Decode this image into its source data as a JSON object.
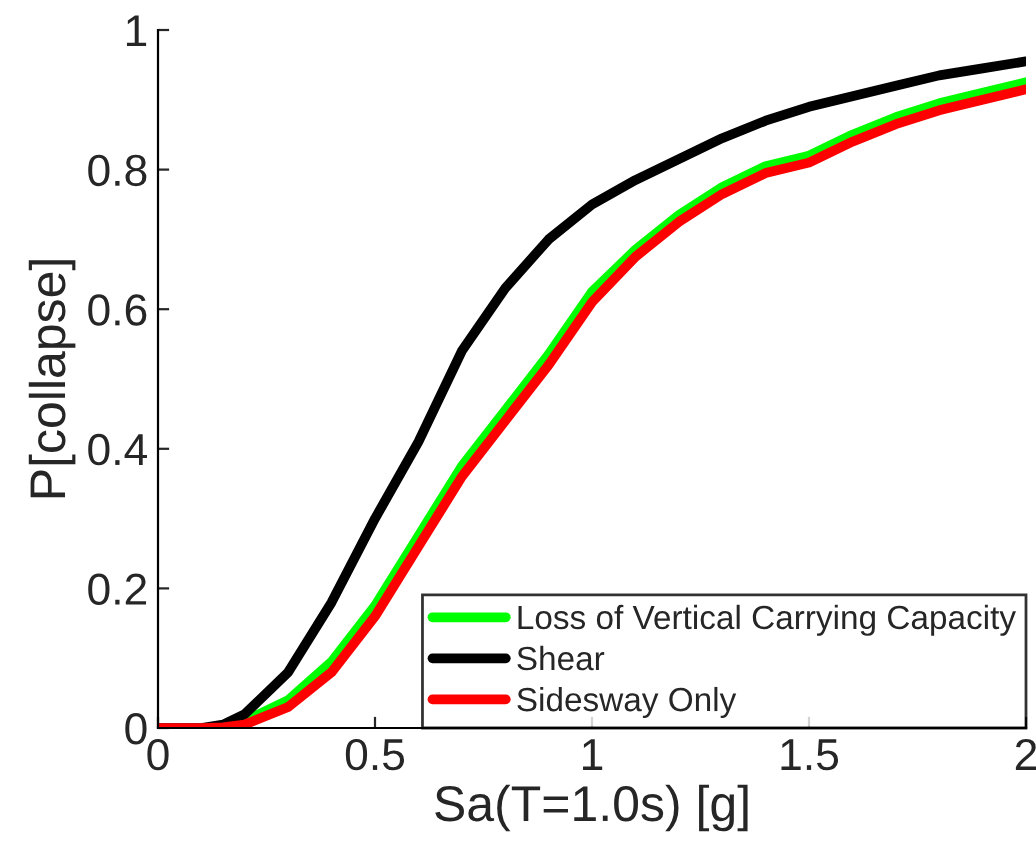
{
  "chart_data": {
    "type": "line",
    "xlabel": "Sa(T=1.0s) [g]",
    "ylabel": "P[collapse]",
    "x": [
      0,
      0.1,
      0.15,
      0.2,
      0.3,
      0.4,
      0.5,
      0.6,
      0.7,
      0.8,
      0.9,
      1.0,
      1.1,
      1.2,
      1.3,
      1.4,
      1.5,
      1.6,
      1.7,
      1.8,
      1.9,
      2.0
    ],
    "series": [
      {
        "name": "Loss of Vertical Carrying Capacity",
        "color": "#00ff00",
        "values": [
          null,
          null,
          null,
          0.01,
          0.04,
          0.095,
          0.175,
          0.275,
          0.375,
          0.455,
          0.535,
          0.625,
          0.685,
          0.735,
          0.775,
          0.805,
          0.82,
          0.85,
          0.875,
          0.895,
          0.91,
          0.925
        ]
      },
      {
        "name": "Shear",
        "color": "#000000",
        "values": [
          0,
          0,
          0.005,
          0.02,
          0.08,
          0.18,
          0.3,
          0.41,
          0.54,
          0.63,
          0.7,
          0.75,
          0.785,
          0.815,
          0.845,
          0.87,
          0.89,
          0.905,
          0.92,
          0.935,
          0.945,
          0.955
        ]
      },
      {
        "name": "Sidesway Only",
        "color": "#ff0000",
        "values": [
          0,
          0,
          0.001,
          0.005,
          0.03,
          0.08,
          0.16,
          0.26,
          0.36,
          0.44,
          0.52,
          0.61,
          0.675,
          0.725,
          0.765,
          0.795,
          0.81,
          0.84,
          0.865,
          0.885,
          0.9,
          0.915
        ]
      }
    ],
    "xlim": [
      0,
      2
    ],
    "xticks": [
      0,
      0.5,
      1,
      1.5,
      2
    ],
    "ylim": [
      0,
      1
    ],
    "yticks": [
      0,
      0.2,
      0.4,
      0.6,
      0.8,
      1
    ],
    "grid": false,
    "legend": "bottom right",
    "line_style": "solid",
    "marker": "none"
  }
}
